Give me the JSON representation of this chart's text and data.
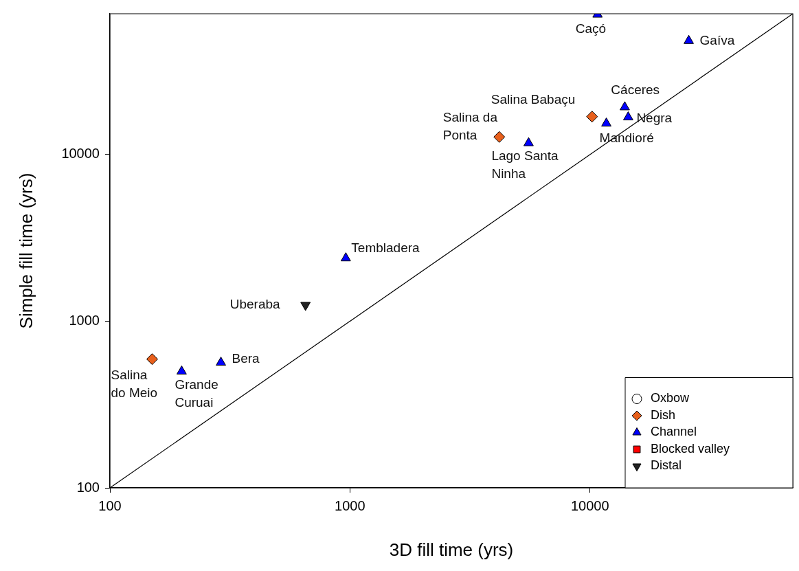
{
  "chart_data": {
    "type": "scatter",
    "xlabel": "3D fill time (yrs)",
    "ylabel": "Simple fill time (yrs)",
    "log": "xy",
    "grid": false,
    "legend": "bottom right",
    "xlim": [
      100,
      70000
    ],
    "ylim": [
      100,
      70000
    ],
    "xticks": [
      100,
      1000,
      10000
    ],
    "yticks": [
      100,
      1000,
      10000
    ],
    "series": [
      {
        "name": "Oxbow",
        "color": "#ffffff",
        "marker": "circle"
      },
      {
        "name": "Dish",
        "color": "#e8601c",
        "marker": "diamond",
        "x": [
          150,
          4190,
          10200
        ],
        "values": [
          592,
          12760,
          16900
        ]
      },
      {
        "name": "Channel",
        "color": "#0000ff",
        "marker": "triangle",
        "x": [
          199,
          290,
          961,
          5550,
          10750,
          25800,
          13960,
          14430,
          11700
        ],
        "values": [
          500,
          565,
          2390,
          11730,
          69300,
          48200,
          19260,
          16760,
          15380
        ]
      },
      {
        "name": "Blocked valley",
        "color": "#ff0000",
        "marker": "square"
      },
      {
        "name": "Distal",
        "color": "#222222",
        "marker": "triangle-down",
        "x": [
          653
        ],
        "values": [
          1250
        ]
      },
      {
        "type": "line",
        "color": "#000000",
        "marker": "none",
        "x": [
          100,
          70000
        ],
        "values": [
          100,
          70000
        ]
      }
    ],
    "annotations": [
      {
        "text": "Salina do Meio",
        "x": 150,
        "y": 592
      },
      {
        "text": "Grande Curuai",
        "x": 199,
        "y": 500
      },
      {
        "text": "Bera",
        "x": 290,
        "y": 565
      },
      {
        "text": "Uberaba",
        "x": 653,
        "y": 1250
      },
      {
        "text": "Tembladera",
        "x": 961,
        "y": 2390
      },
      {
        "text": "Salina da Ponta",
        "x": 4190,
        "y": 12760
      },
      {
        "text": "Lago Santa Ninha",
        "x": 5550,
        "y": 11730
      },
      {
        "text": "Salina Babaçu",
        "x": 10200,
        "y": 16900
      },
      {
        "text": "Caçó",
        "x": 10750,
        "y": 69300
      },
      {
        "text": "Gaíva",
        "x": 25800,
        "y": 48200
      },
      {
        "text": "Cáceres",
        "x": 13960,
        "y": 19260
      },
      {
        "text": "Negra",
        "x": 14430,
        "y": 16760
      },
      {
        "text": "Mandioré",
        "x": 11700,
        "y": 15380
      }
    ]
  }
}
